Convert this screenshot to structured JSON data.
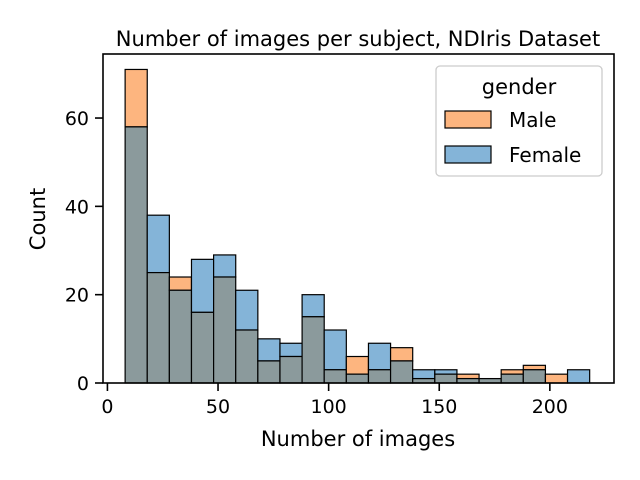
{
  "chart_data": {
    "type": "bar",
    "title": "Number of images per subject, NDIris Dataset",
    "xlabel": "Number of images",
    "ylabel": "Count",
    "xlim": [
      -2,
      229
    ],
    "ylim": [
      0,
      74.5
    ],
    "xticks": [
      0,
      50,
      100,
      150,
      200
    ],
    "yticks": [
      0,
      20,
      40,
      60
    ],
    "grid": false,
    "legend": {
      "title": "gender",
      "placement": "top-right",
      "entries": [
        {
          "name": "Male",
          "color": "#FDB57F"
        },
        {
          "name": "Female",
          "color": "#84B4D8"
        }
      ]
    },
    "overlap_color": "#8B9A9C",
    "bin_edges": [
      8,
      18,
      28,
      38,
      48,
      58,
      68,
      78,
      88,
      98,
      108,
      118,
      128,
      138,
      148,
      158,
      168,
      178,
      188,
      198,
      208,
      218
    ],
    "series": [
      {
        "name": "Male",
        "color": "#FDB57F",
        "values": [
          71,
          25,
          24,
          16,
          24,
          12,
          5,
          6,
          15,
          3,
          6,
          3,
          8,
          1,
          2,
          2,
          1,
          3,
          4,
          2,
          0
        ]
      },
      {
        "name": "Female",
        "color": "#84B4D8",
        "values": [
          58,
          38,
          21,
          28,
          29,
          21,
          10,
          9,
          20,
          12,
          2,
          9,
          5,
          3,
          3,
          1,
          1,
          2,
          3,
          0,
          3
        ]
      }
    ]
  }
}
